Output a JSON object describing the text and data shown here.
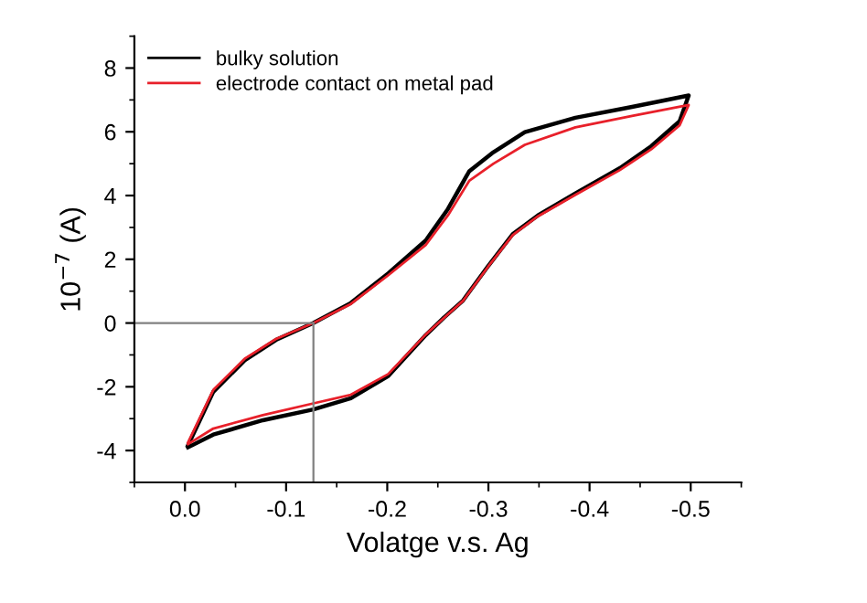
{
  "chart_data": {
    "type": "line",
    "xlabel": "Volatge v.s. Ag",
    "ylabel": "10$^{−7}$ (A)",
    "xlim": [
      0.05,
      -0.55
    ],
    "ylim": [
      -5,
      9
    ],
    "xticks": [
      {
        "value": 0,
        "label": "0.0"
      },
      -0.1,
      -0.2,
      -0.3,
      -0.4,
      -0.5
    ],
    "yticks": [
      -4,
      -2,
      0,
      2,
      4,
      6,
      8
    ],
    "grid": false,
    "legend": "top left",
    "line_style": "solid",
    "marker": "none",
    "ref_lines": [
      {
        "axis": "x",
        "value": -0.127,
        "color": "#808080"
      },
      {
        "axis": "y",
        "value": 0,
        "color": "#808080"
      }
    ],
    "series": [
      {
        "name": "bulky solution",
        "color": "#000000",
        "x": [
          -0.003,
          -0.028,
          -0.059,
          -0.09,
          -0.127,
          -0.164,
          -0.201,
          -0.238,
          -0.26,
          -0.281,
          -0.305,
          -0.336,
          -0.386,
          -0.442,
          -0.498,
          -0.489,
          -0.461,
          -0.43,
          -0.386,
          -0.349,
          -0.324,
          -0.3,
          -0.275,
          -0.256,
          -0.238,
          -0.201,
          -0.164,
          -0.127,
          -0.077,
          -0.028,
          -0.003
        ],
        "values": [
          -3.84,
          -2.16,
          -1.17,
          -0.53,
          0,
          0.63,
          1.56,
          2.59,
          3.58,
          4.76,
          5.36,
          5.99,
          6.44,
          6.78,
          7.14,
          6.33,
          5.55,
          4.86,
          4.07,
          3.38,
          2.79,
          1.8,
          0.71,
          0.17,
          -0.38,
          -1.66,
          -2.36,
          -2.71,
          -3.05,
          -3.5,
          -3.9
        ]
      },
      {
        "name": "electrode contact on metal pad",
        "color": "#e8202a",
        "x": [
          -0.003,
          -0.028,
          -0.059,
          -0.09,
          -0.127,
          -0.164,
          -0.201,
          -0.238,
          -0.26,
          -0.281,
          -0.305,
          -0.336,
          -0.386,
          -0.442,
          -0.498,
          -0.489,
          -0.461,
          -0.43,
          -0.386,
          -0.349,
          -0.324,
          -0.3,
          -0.275,
          -0.256,
          -0.238,
          -0.201,
          -0.164,
          -0.127,
          -0.077,
          -0.028,
          -0.003
        ],
        "values": [
          -3.75,
          -2.1,
          -1.12,
          -0.5,
          0,
          0.6,
          1.5,
          2.45,
          3.38,
          4.46,
          5.0,
          5.59,
          6.14,
          6.5,
          6.84,
          6.2,
          5.45,
          4.8,
          4.02,
          3.35,
          2.76,
          1.78,
          0.7,
          0.16,
          -0.36,
          -1.6,
          -2.25,
          -2.52,
          -2.89,
          -3.31,
          -3.8
        ]
      }
    ]
  }
}
